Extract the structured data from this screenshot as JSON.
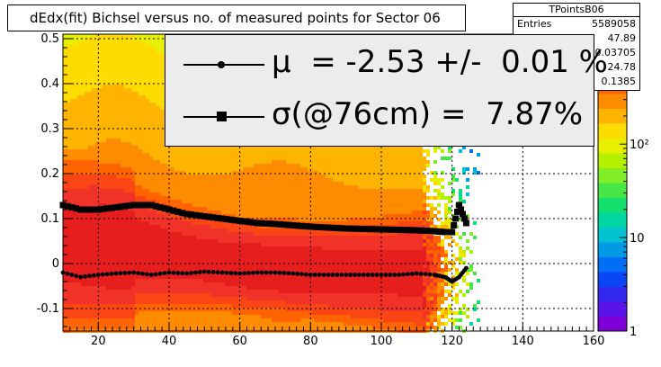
{
  "title": "dEdx(fit) Bichsel versus no. of measured points for Sector 06",
  "stats": {
    "name": "TPointsB06",
    "rows": [
      {
        "label": "Entries",
        "value": "5589058"
      },
      {
        "label": "",
        "value": "47.89"
      },
      {
        "label": "",
        "value": "0.03705"
      },
      {
        "label": "",
        "value": "24.78"
      },
      {
        "label": "",
        "value": "0.1385"
      }
    ]
  },
  "legend": {
    "mu_text": "μ  = -2.53 +/-  0.01 %",
    "sigma_text": "σ(@76cm) =  7.87%"
  },
  "chart_data": {
    "type": "heatmap",
    "x_ticks": [
      20,
      40,
      60,
      80,
      100,
      120,
      140,
      160
    ],
    "y_ticks": [
      -0.1,
      0,
      0.1,
      0.2,
      0.3,
      0.4,
      0.5
    ],
    "xlim": [
      10,
      160
    ],
    "ylim": [
      -0.15,
      0.51
    ],
    "z_scale": "log",
    "zlim": [
      1,
      1500
    ],
    "z_tick_labels": [
      "1",
      "10",
      "10²"
    ],
    "z_ticks": [
      1,
      10,
      100
    ],
    "grid": true,
    "series": [
      {
        "marker": "circle",
        "x": [
          10,
          15,
          20,
          25,
          30,
          35,
          40,
          45,
          50,
          55,
          60,
          65,
          70,
          75,
          80,
          85,
          90,
          95,
          100,
          105,
          110,
          115,
          118,
          120,
          122,
          124
        ],
        "y": [
          -0.02,
          -0.03,
          -0.025,
          -0.022,
          -0.02,
          -0.025,
          -0.02,
          -0.022,
          -0.018,
          -0.02,
          -0.022,
          -0.02,
          -0.02,
          -0.022,
          -0.025,
          -0.025,
          -0.025,
          -0.025,
          -0.025,
          -0.025,
          -0.022,
          -0.025,
          -0.03,
          -0.04,
          -0.03,
          -0.01
        ]
      },
      {
        "marker": "square",
        "x": [
          10,
          15,
          20,
          25,
          30,
          35,
          40,
          45,
          50,
          55,
          60,
          65,
          70,
          75,
          80,
          85,
          90,
          95,
          100,
          105,
          110,
          115,
          118,
          120,
          122,
          124
        ],
        "y": [
          0.13,
          0.12,
          0.12,
          0.125,
          0.13,
          0.13,
          0.12,
          0.11,
          0.105,
          0.1,
          0.095,
          0.09,
          0.088,
          0.085,
          0.082,
          0.08,
          0.078,
          0.077,
          0.076,
          0.075,
          0.074,
          0.072,
          0.07,
          0.07,
          0.13,
          0.09
        ]
      }
    ]
  }
}
